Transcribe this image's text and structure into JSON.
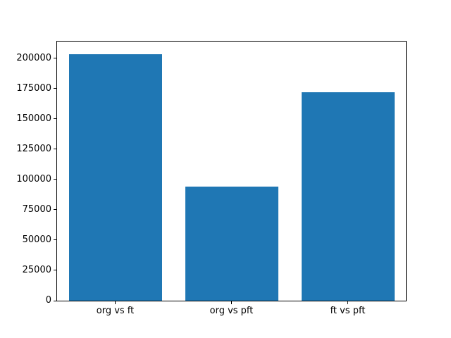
{
  "chart_data": {
    "type": "bar",
    "categories": [
      "org vs ft",
      "org vs pft",
      "ft vs pft"
    ],
    "values": [
      203500,
      94000,
      172000
    ],
    "ylim": [
      0,
      213675
    ],
    "yticks": [
      0,
      25000,
      50000,
      75000,
      100000,
      125000,
      150000,
      175000,
      200000
    ],
    "ytick_labels": [
      "0",
      "25000",
      "50000",
      "75000",
      "100000",
      "125000",
      "150000",
      "175000",
      "200000"
    ],
    "grid": false,
    "legend": "none",
    "bar_color": "#1f77b4",
    "bar_width_fraction": 0.8,
    "colors": {
      "background": "#ffffff",
      "plot_background": "#ffffff",
      "spine": "#000000",
      "text": "#000000"
    }
  }
}
